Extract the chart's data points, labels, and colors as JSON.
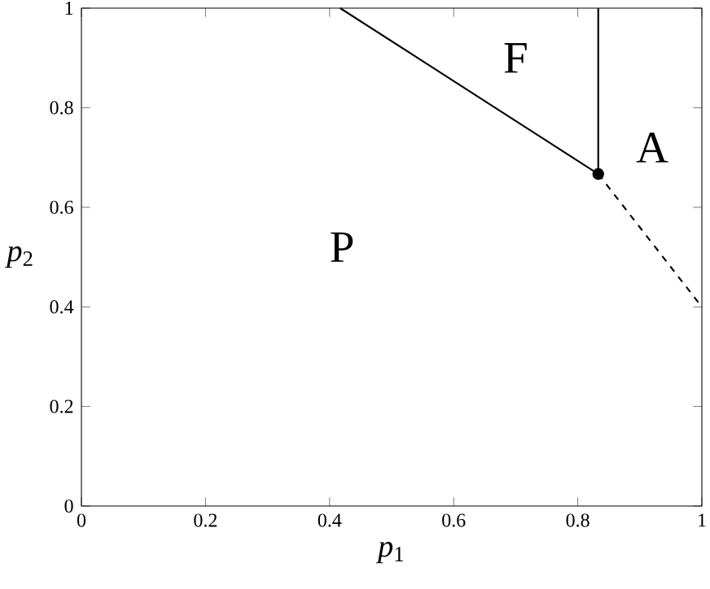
{
  "chart_data": {
    "type": "line",
    "xlabel": "*p*$_{1}$",
    "ylabel": "*p*$_{2}$",
    "xlim": [
      0,
      1
    ],
    "ylim": [
      0,
      1
    ],
    "xticks": [
      0,
      0.2,
      0.4,
      0.6,
      0.8,
      1
    ],
    "yticks": [
      0,
      0.2,
      0.4,
      0.6,
      0.8,
      1
    ],
    "grid": false,
    "series": [
      {
        "color": "#000000",
        "line_style": "solid",
        "x": [
          0.417,
          0.833
        ],
        "values": [
          1,
          0.667
        ]
      },
      {
        "color": "#000000",
        "line_style": "solid",
        "x": [
          0.833,
          0.833
        ],
        "values": [
          0.667,
          1
        ]
      },
      {
        "color": "#000000",
        "line_style": "dashed",
        "x": [
          0.833,
          1
        ],
        "values": [
          0.667,
          0.4
        ]
      },
      {
        "type": "scatter",
        "color": "#000000",
        "x": [
          0.833
        ],
        "values": [
          0.667
        ]
      }
    ],
    "annotations": [
      "P",
      "F",
      "A"
    ]
  }
}
